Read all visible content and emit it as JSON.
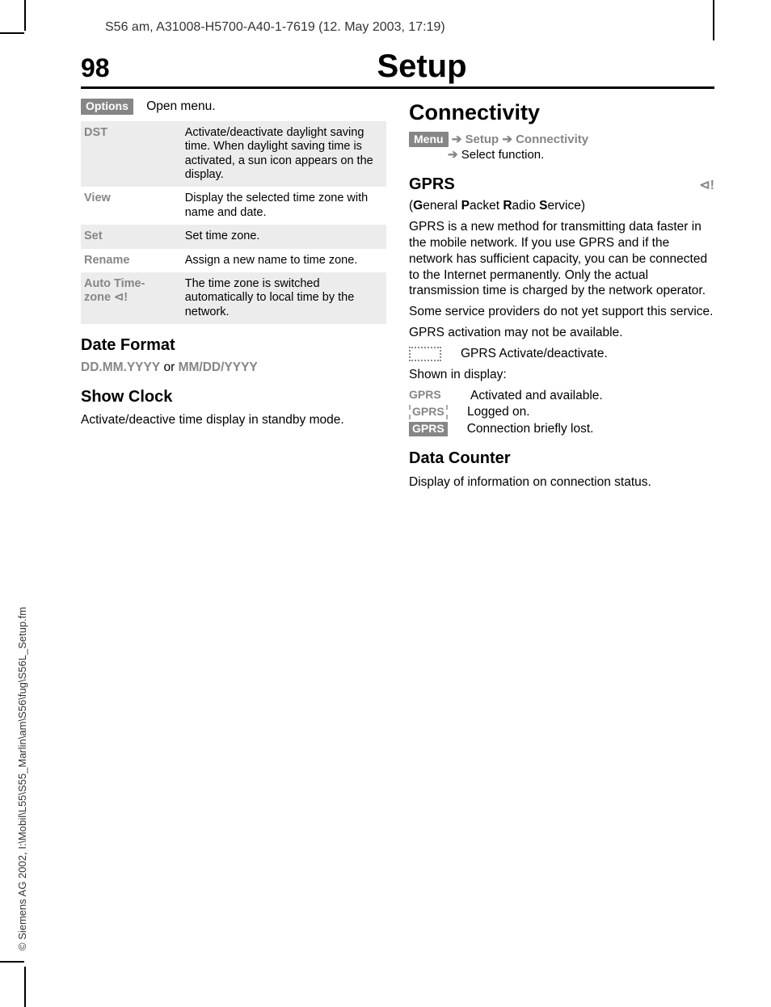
{
  "header_line": "S56 am, A31008-H5700-A40-1-7619 (12. May 2003, 17:19)",
  "page_number": "98",
  "page_title": "Setup",
  "sidebar": "© Siemens AG 2002, I:\\Mobil\\L55\\S55_Marlin\\am\\S56\\fug\\S56L_Setup.fm",
  "left": {
    "options_label": "Options",
    "open_menu": "Open menu.",
    "table": [
      {
        "term": "DST",
        "def": "Activate/deactivate daylight saving time. When daylight saving time is activated, a sun icon appears on the display."
      },
      {
        "term": "View",
        "def": "Display the selected time zone with name and date."
      },
      {
        "term": "Set",
        "def": "Set time zone."
      },
      {
        "term": "Rename",
        "def": "Assign a new name to time zone."
      },
      {
        "term": "Auto Time-\nzone ⊲!",
        "def": "The time zone is switched automatically to local time by the network."
      }
    ],
    "date_format_h": "Date Format",
    "date_format_1": "DD.MM.YYYY",
    "date_format_or": " or ",
    "date_format_2": "MM/DD/YYYY",
    "show_clock_h": "Show Clock",
    "show_clock_p": "Activate/deactive time display in standby mode."
  },
  "right": {
    "connectivity_h": "Connectivity",
    "menu_label": "Menu",
    "bc1": "Setup",
    "bc2": "Connectivity",
    "bc3": "Select function.",
    "gprs_h": "GPRS",
    "sat_icon": "⊲!",
    "gprs_full": {
      "g": "G",
      "eneral": "eneral ",
      "p": "P",
      "acket": "acket ",
      "r": "R",
      "adio": "adio ",
      "s": "S",
      "ervice": "ervice)"
    },
    "gprs_open": "(",
    "gprs_p1": "GPRS is a new method for transmitting data faster in the mobile network. If you use GPRS and if the network has sufficient capacity, you can be connected to the Internet permanently. Only the actual transmission time is charged by the network operator.",
    "gprs_p2": "Some service providers do not yet support this service.",
    "gprs_p3": "GPRS activation may not be available.",
    "gprs_activate": "GPRS Activate/deactivate.",
    "shown_in": "Shown in display:",
    "status": [
      {
        "style": "plain",
        "label": "GPRS",
        "text": "Activated and available."
      },
      {
        "style": "dashed",
        "label": "GPRS",
        "text": "Logged on."
      },
      {
        "style": "inverse",
        "label": "GPRS",
        "text": "Connection briefly lost."
      }
    ],
    "data_counter_h": "Data Counter",
    "data_counter_p": "Display of information on connection status."
  }
}
